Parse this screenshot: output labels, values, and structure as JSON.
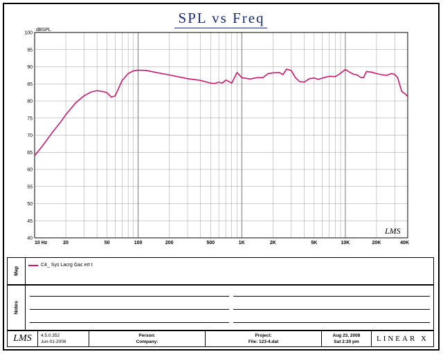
{
  "chart_data": {
    "type": "line",
    "title": "SPL vs Freq",
    "ylabel": "dBSPL",
    "xlabel": "",
    "xscale": "log",
    "xlim": [
      10,
      40000
    ],
    "ylim": [
      40,
      100
    ],
    "x_tick_labels": [
      {
        "x": 10,
        "label": "10 Hz"
      },
      {
        "x": 20,
        "label": "20"
      },
      {
        "x": 50,
        "label": "50"
      },
      {
        "x": 100,
        "label": "100"
      },
      {
        "x": 200,
        "label": "200"
      },
      {
        "x": 500,
        "label": "500"
      },
      {
        "x": 1000,
        "label": "1K"
      },
      {
        "x": 2000,
        "label": "2K"
      },
      {
        "x": 5000,
        "label": "5K"
      },
      {
        "x": 10000,
        "label": "10K"
      },
      {
        "x": 20000,
        "label": "20K"
      },
      {
        "x": 40000,
        "label": "40K"
      }
    ],
    "y_ticks": [
      40,
      45,
      50,
      55,
      60,
      65,
      70,
      75,
      80,
      85,
      90,
      95,
      100
    ],
    "grid": true,
    "series": [
      {
        "name": "C4_ Sys Lacrg Gac ert t",
        "color": "#c8186b",
        "x": [
          10,
          12,
          15,
          18,
          20,
          25,
          30,
          35,
          40,
          45,
          50,
          55,
          60,
          70,
          80,
          90,
          100,
          120,
          150,
          200,
          300,
          400,
          500,
          550,
          600,
          650,
          700,
          750,
          800,
          850,
          900,
          1000,
          1100,
          1200,
          1400,
          1600,
          1800,
          2000,
          2300,
          2500,
          2700,
          3000,
          3300,
          3600,
          4000,
          4500,
          5000,
          5500,
          6000,
          7000,
          8000,
          9000,
          10000,
          11000,
          12000,
          13000,
          14000,
          15000,
          16000,
          18000,
          20000,
          22000,
          25000,
          28000,
          30000,
          32000,
          35000,
          38000,
          40000
        ],
        "values": [
          64,
          67,
          71,
          74,
          76,
          79.5,
          81.5,
          82.6,
          83,
          82.8,
          82.4,
          81.1,
          81.5,
          86,
          88,
          88.8,
          89,
          88.9,
          88.3,
          87.6,
          86.5,
          86,
          85.2,
          85.1,
          85.5,
          85.2,
          86.1,
          85.7,
          85.2,
          86.8,
          88.3,
          86.8,
          86.6,
          86.4,
          86.8,
          86.8,
          88,
          88.2,
          88.3,
          87.7,
          89.3,
          88.9,
          86.8,
          85.7,
          85.5,
          86.5,
          86.7,
          86.3,
          86.7,
          87.2,
          87.1,
          88.1,
          89.2,
          88.4,
          87.8,
          87.6,
          86.9,
          86.8,
          88.6,
          88.4,
          88,
          87.7,
          87.5,
          88,
          87.7,
          86.8,
          82.8,
          82,
          81.3
        ]
      }
    ],
    "annotations": [
      "LMS"
    ]
  },
  "map_label": "Map",
  "notes_label": "Notes",
  "footer": {
    "logo": "LMS",
    "version": "4.5.0.352",
    "version_date": "Jun-01-2008",
    "person_label": "Person:",
    "company_label": "Company:",
    "project_label": "Project:",
    "file_label": "File: 123-4.dat",
    "date": "Aug 23, 2008",
    "time": "Sat 2:20 pm",
    "brand": "LINEAR X"
  },
  "colors": {
    "curve": "#c8186b",
    "title": "#1a2a6e",
    "grid": "#9a9a9a"
  }
}
